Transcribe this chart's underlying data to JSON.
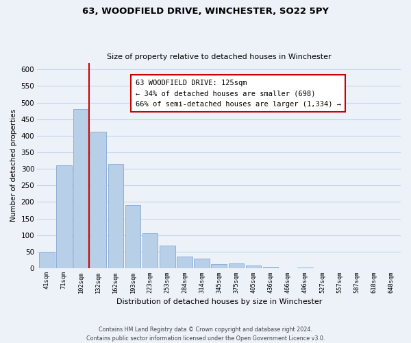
{
  "title": "63, WOODFIELD DRIVE, WINCHESTER, SO22 5PY",
  "subtitle": "Size of property relative to detached houses in Winchester",
  "xlabel": "Distribution of detached houses by size in Winchester",
  "ylabel": "Number of detached properties",
  "bar_labels": [
    "41sqm",
    "71sqm",
    "102sqm",
    "132sqm",
    "162sqm",
    "193sqm",
    "223sqm",
    "253sqm",
    "284sqm",
    "314sqm",
    "345sqm",
    "375sqm",
    "405sqm",
    "436sqm",
    "466sqm",
    "496sqm",
    "527sqm",
    "557sqm",
    "587sqm",
    "618sqm",
    "648sqm"
  ],
  "bar_values": [
    47,
    310,
    480,
    413,
    314,
    191,
    105,
    69,
    35,
    30,
    13,
    14,
    9,
    4,
    1,
    2,
    0,
    0,
    0,
    0,
    1
  ],
  "bar_color": "#b8cfe8",
  "bar_edge_color": "#90b0d8",
  "vline_color": "#cc0000",
  "annotation_lines": [
    "63 WOODFIELD DRIVE: 125sqm",
    "← 34% of detached houses are smaller (698)",
    "66% of semi-detached houses are larger (1,334) →"
  ],
  "annotation_box_color": "#ffffff",
  "annotation_box_edge": "#cc0000",
  "ylim": [
    0,
    620
  ],
  "yticks": [
    0,
    50,
    100,
    150,
    200,
    250,
    300,
    350,
    400,
    450,
    500,
    550,
    600
  ],
  "grid_color": "#c8d4e8",
  "footer_line1": "Contains HM Land Registry data © Crown copyright and database right 2024.",
  "footer_line2": "Contains public sector information licensed under the Open Government Licence v3.0.",
  "bg_color": "#edf2f9"
}
